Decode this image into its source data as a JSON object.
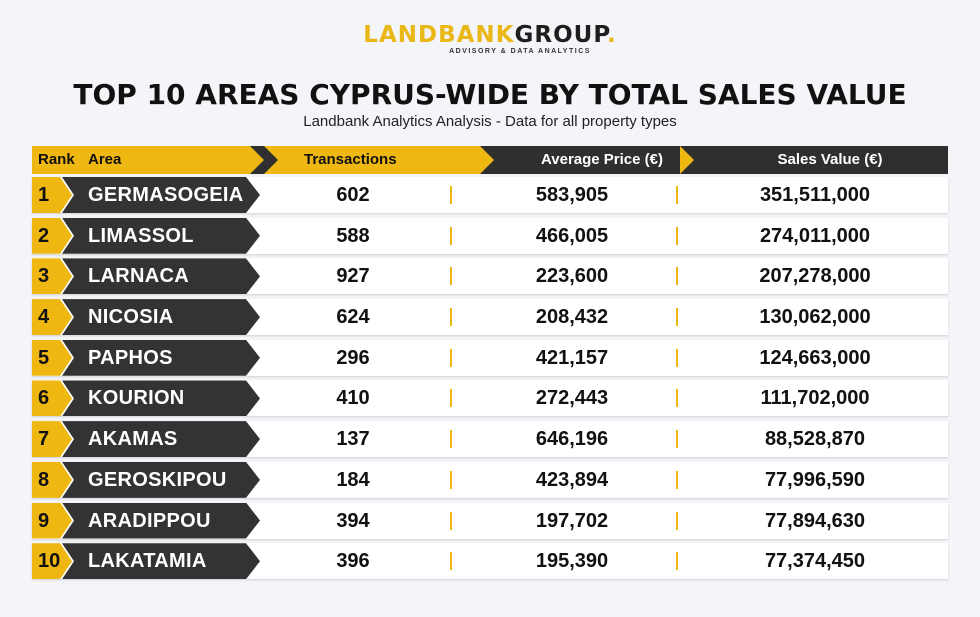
{
  "logo": {
    "part1": "LANDBANK",
    "part2": "GROUP",
    "dot": ".",
    "tagline": "ADVISORY & DATA ANALYTICS"
  },
  "title": "TOP 10 AREAS CYPRUS-WIDE BY TOTAL SALES VALUE",
  "subtitle": "Landbank Analytics Analysis - Data for all property types",
  "headers": {
    "rank": "Rank",
    "area": "Area",
    "transactions": "Transactions",
    "avg_price": "Average Price (€)",
    "sales_value": "Sales Value (€)"
  },
  "colors": {
    "accent": "#efb711",
    "dark": "#333333",
    "background": "#f3f5f9"
  },
  "rows": [
    {
      "rank": "1",
      "area": "GERMASOGEIA",
      "transactions": "602",
      "avg_price": "583,905",
      "sales_value": "351,511,000"
    },
    {
      "rank": "2",
      "area": "LIMASSOL",
      "transactions": "588",
      "avg_price": "466,005",
      "sales_value": "274,011,000"
    },
    {
      "rank": "3",
      "area": "LARNACA",
      "transactions": "927",
      "avg_price": "223,600",
      "sales_value": "207,278,000"
    },
    {
      "rank": "4",
      "area": "NICOSIA",
      "transactions": "624",
      "avg_price": "208,432",
      "sales_value": "130,062,000"
    },
    {
      "rank": "5",
      "area": "PAPHOS",
      "transactions": "296",
      "avg_price": "421,157",
      "sales_value": "124,663,000"
    },
    {
      "rank": "6",
      "area": "KOURION",
      "transactions": "410",
      "avg_price": "272,443",
      "sales_value": "111,702,000"
    },
    {
      "rank": "7",
      "area": "AKAMAS",
      "transactions": "137",
      "avg_price": "646,196",
      "sales_value": "88,528,870"
    },
    {
      "rank": "8",
      "area": "GEROSKIPOU",
      "transactions": "184",
      "avg_price": "423,894",
      "sales_value": "77,996,590"
    },
    {
      "rank": "9",
      "area": "ARADIPPOU",
      "transactions": "394",
      "avg_price": "197,702",
      "sales_value": "77,894,630"
    },
    {
      "rank": "10",
      "area": "LAKATAMIA",
      "transactions": "396",
      "avg_price": "195,390",
      "sales_value": "77,374,450"
    }
  ]
}
